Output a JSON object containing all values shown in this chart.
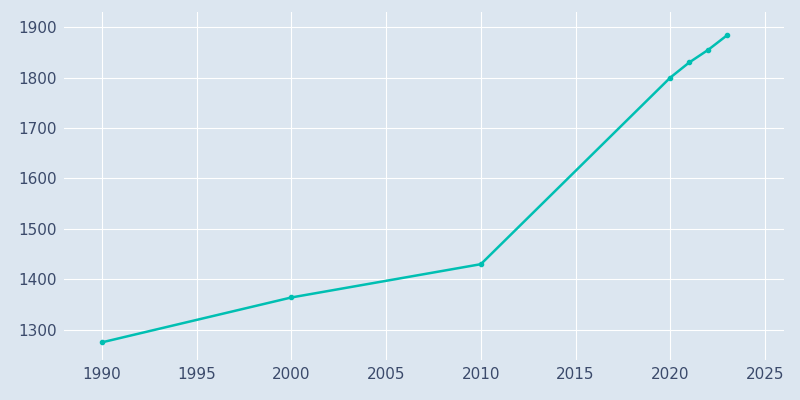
{
  "years": [
    1990,
    2000,
    2010,
    2020,
    2021,
    2022,
    2023
  ],
  "population": [
    1275,
    1364,
    1430,
    1800,
    1830,
    1855,
    1884
  ],
  "line_color": "#00BFB2",
  "background_color": "#DCE6F0",
  "plot_background_color": "#DCE6F0",
  "grid_color": "#FFFFFF",
  "tick_color": "#3B4A6B",
  "xlim": [
    1988,
    2026
  ],
  "ylim": [
    1240,
    1930
  ],
  "yticks": [
    1300,
    1400,
    1500,
    1600,
    1700,
    1800,
    1900
  ],
  "xticks": [
    1990,
    1995,
    2000,
    2005,
    2010,
    2015,
    2020,
    2025
  ],
  "line_width": 1.8,
  "marker": "o",
  "marker_size": 3
}
